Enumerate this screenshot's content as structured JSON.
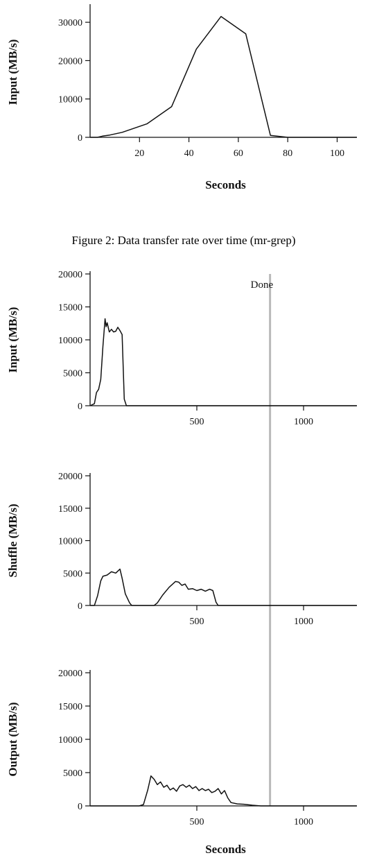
{
  "caption": "Figure 2: Data transfer rate over time (mr-grep)",
  "chart_data": [
    {
      "type": "line",
      "id": "top",
      "xlabel": "Seconds",
      "ylabel": "Input (MB/s)",
      "xlim": [
        0,
        108
      ],
      "ylim": [
        0,
        34000
      ],
      "xticks": [
        20,
        40,
        60,
        80,
        100
      ],
      "yticks": [
        0,
        10000,
        20000,
        30000
      ],
      "x": [
        0,
        3,
        5,
        8,
        13,
        23,
        33,
        43,
        53,
        63,
        73,
        80,
        108
      ],
      "y": [
        0,
        0,
        300,
        600,
        1300,
        3500,
        8000,
        23000,
        31500,
        27000,
        500,
        0,
        0
      ]
    },
    {
      "type": "line",
      "id": "input",
      "xlabel": "",
      "ylabel": "Input (MB/s)",
      "xlim": [
        0,
        1250
      ],
      "ylim": [
        0,
        20000
      ],
      "xticks": [
        500,
        1000
      ],
      "yticks": [
        0,
        5000,
        10000,
        15000,
        20000
      ],
      "x": [
        0,
        20,
        30,
        40,
        50,
        60,
        70,
        75,
        80,
        90,
        100,
        110,
        120,
        130,
        140,
        150,
        160,
        170,
        180,
        1250
      ],
      "y": [
        0,
        300,
        2000,
        2500,
        4000,
        9000,
        13200,
        12000,
        12600,
        11200,
        11600,
        11200,
        11300,
        11900,
        11400,
        10800,
        1000,
        0,
        0,
        0
      ]
    },
    {
      "type": "line",
      "id": "shuffle",
      "xlabel": "",
      "ylabel": "Shuffle (MB/s)",
      "xlim": [
        0,
        1250
      ],
      "ylim": [
        0,
        20000
      ],
      "xticks": [
        500,
        1000
      ],
      "yticks": [
        0,
        5000,
        10000,
        15000,
        20000
      ],
      "x": [
        0,
        20,
        35,
        50,
        60,
        80,
        100,
        120,
        140,
        150,
        165,
        185,
        195,
        300,
        315,
        340,
        370,
        400,
        415,
        430,
        445,
        460,
        480,
        500,
        520,
        540,
        560,
        575,
        590,
        600,
        1250
      ],
      "y": [
        0,
        0,
        1500,
        3800,
        4500,
        4700,
        5200,
        5000,
        5600,
        4200,
        1800,
        400,
        0,
        0,
        400,
        1600,
        2800,
        3700,
        3600,
        3100,
        3300,
        2500,
        2600,
        2300,
        2500,
        2200,
        2500,
        2300,
        500,
        0,
        0
      ]
    },
    {
      "type": "line",
      "id": "output",
      "xlabel": "Seconds",
      "ylabel": "Output (MB/s)",
      "xlim": [
        0,
        1250
      ],
      "ylim": [
        0,
        20000
      ],
      "xticks": [
        500,
        1000
      ],
      "yticks": [
        0,
        5000,
        10000,
        15000,
        20000
      ],
      "x": [
        0,
        230,
        250,
        270,
        285,
        300,
        315,
        330,
        345,
        360,
        375,
        390,
        405,
        420,
        435,
        450,
        465,
        480,
        495,
        510,
        525,
        540,
        555,
        570,
        585,
        600,
        615,
        630,
        645,
        660,
        690,
        720,
        760,
        800,
        1250
      ],
      "y": [
        0,
        0,
        200,
        2400,
        4500,
        4000,
        3200,
        3600,
        2800,
        3100,
        2400,
        2700,
        2200,
        3000,
        3200,
        2800,
        3100,
        2600,
        2900,
        2300,
        2600,
        2300,
        2500,
        2000,
        2200,
        2600,
        1800,
        2300,
        1200,
        500,
        300,
        250,
        100,
        0,
        0
      ]
    }
  ],
  "done": {
    "label": "Done",
    "x": 843
  }
}
